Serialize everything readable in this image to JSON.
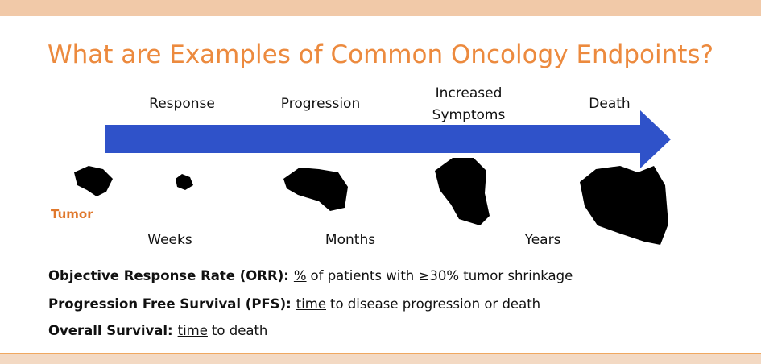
{
  "title": "What are Examples of Common Oncology Endpoints?",
  "stages": [
    "Response",
    "Progression",
    "Increased Symptoms",
    "Death"
  ],
  "tumor_label": "Tumor",
  "timescale": [
    "Weeks",
    "Months",
    "Years"
  ],
  "definitions": [
    {
      "term": "Objective Response Rate (ORR):",
      "measure": "%",
      "rest": "of patients with ≥30% tumor shrinkage"
    },
    {
      "term": "Progression Free Survival (PFS):",
      "measure": "time",
      "rest": "to disease progression or death"
    },
    {
      "term": "Overall Survival:",
      "measure": "time",
      "rest": "to death"
    }
  ]
}
